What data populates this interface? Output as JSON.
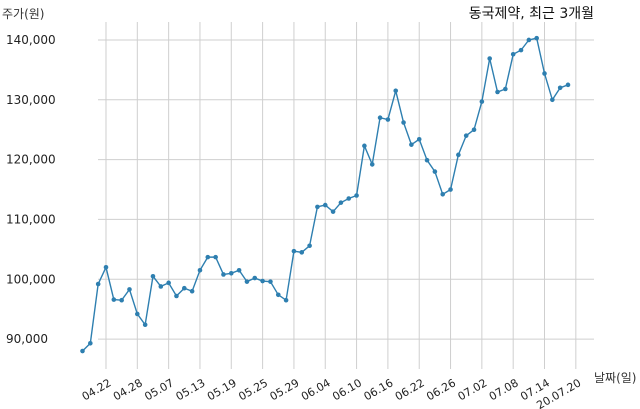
{
  "chart_data": {
    "type": "line",
    "title": "동국제약, 최근 3개월",
    "ylabel": "주가(원)",
    "xlabel": "날짜(일)",
    "ylim": [
      85000,
      143000
    ],
    "grid": true,
    "line_color": "#2e7fb0",
    "yticks": [
      90000,
      100000,
      110000,
      120000,
      130000,
      140000
    ],
    "ytick_labels": [
      "90,000",
      "100,000",
      "110,000",
      "120,000",
      "130,000",
      "140,000"
    ],
    "xtick_index": [
      3,
      7,
      11,
      15,
      19,
      23,
      27,
      31,
      35,
      39,
      43,
      47,
      51,
      55,
      59,
      63
    ],
    "xtick_labels": [
      "04.22",
      "04.28",
      "05.07",
      "05.13",
      "05.19",
      "05.25",
      "05.29",
      "06.04",
      "06.10",
      "06.16",
      "06.22",
      "06.26",
      "07.02",
      "07.08",
      "07.14",
      "20.07.20"
    ],
    "values": [
      88000,
      89300,
      99200,
      102000,
      96600,
      96500,
      98300,
      94200,
      92400,
      100500,
      98800,
      99400,
      97200,
      98500,
      98000,
      101500,
      103700,
      103700,
      100800,
      101000,
      101500,
      99600,
      100200,
      99700,
      99600,
      97400,
      96500,
      104700,
      104500,
      105600,
      112100,
      112400,
      111300,
      112800,
      113500,
      114000,
      122300,
      119200,
      127000,
      126700,
      131500,
      126200,
      122500,
      123400,
      119900,
      118000,
      114200,
      115000,
      120800,
      124000,
      125000,
      129700,
      136900,
      131300,
      131800,
      137600,
      138300,
      140000,
      140300,
      134400,
      130000,
      132000,
      132500
    ]
  }
}
